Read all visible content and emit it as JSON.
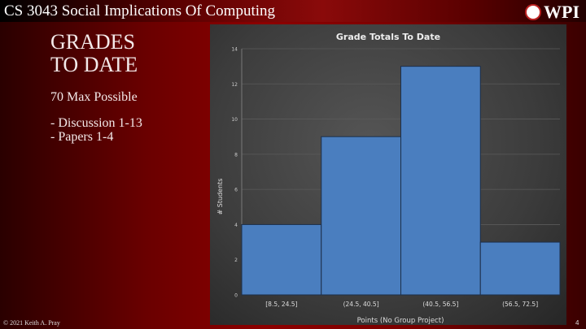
{
  "header": {
    "title": "CS 3043 Social Implications Of Computing",
    "logo_text": "WPI"
  },
  "slide": {
    "title_line1": "GRADES",
    "title_line2": "TO DATE",
    "max_possible": "70 Max Possible",
    "items": [
      "- Discussion 1-13",
      "- Papers 1-4"
    ]
  },
  "footer": {
    "copyright": "© 2021 Keith A. Pray",
    "page": "4"
  },
  "chart_data": {
    "type": "bar",
    "title": "Grade Totals To Date",
    "xlabel": "Points (No Group Project)",
    "ylabel": "# Students",
    "categories": [
      "[8.5, 24.5]",
      "(24.5, 40.5]",
      "(40.5, 56.5]",
      "(56.5, 72.5]"
    ],
    "values": [
      4,
      9,
      13,
      3
    ],
    "ylim": [
      0,
      14
    ],
    "yticks": [
      0,
      2,
      4,
      6,
      8,
      10,
      12,
      14
    ],
    "grid": true,
    "bar_color": "#4a7ebf"
  }
}
